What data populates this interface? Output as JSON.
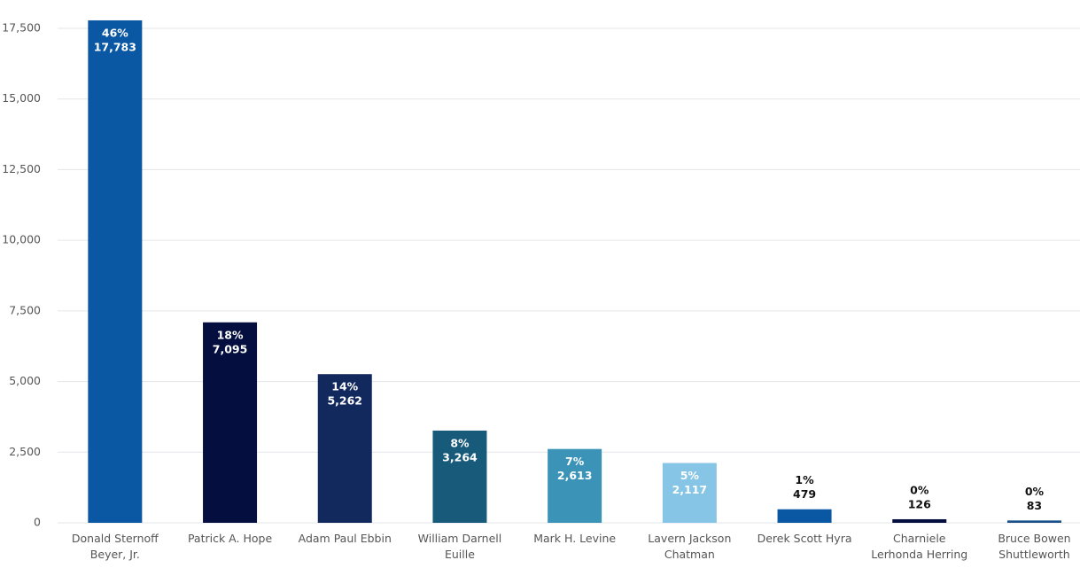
{
  "chart_data": {
    "type": "bar",
    "categories": [
      "Donald Sternoff Beyer, Jr.",
      "Patrick A. Hope",
      "Adam Paul Ebbin",
      "William Darnell Euille",
      "Mark H. Levine",
      "Lavern Jackson Chatman",
      "Derek Scott Hyra",
      "Charniele Lerhonda Herring",
      "Bruce Bowen Shuttleworth"
    ],
    "values": [
      17783,
      7095,
      5262,
      3264,
      2613,
      2117,
      479,
      126,
      83
    ],
    "value_labels": [
      "17,783",
      "7,095",
      "5,262",
      "3,264",
      "2,613",
      "2,117",
      "479",
      "126",
      "83"
    ],
    "percent_labels": [
      "46%",
      "18%",
      "14%",
      "8%",
      "7%",
      "5%",
      "1%",
      "0%",
      "0%"
    ],
    "colors": [
      "#0a57a4",
      "#040f3f",
      "#12295e",
      "#185a7a",
      "#3b93b8",
      "#86c5e5",
      "#0a57a4",
      "#040f3f",
      "#1a4f8a"
    ],
    "ylim": [
      0,
      17500
    ],
    "yticks": [
      0,
      {
        "value": 2500,
        "label": "2,500"
      },
      {
        "value": 5000,
        "label": "5,000"
      },
      {
        "value": 7500,
        "label": "7,500"
      },
      {
        "value": 10000,
        "label": "10,000"
      },
      {
        "value": 12500,
        "label": "12,500"
      },
      {
        "value": 15000,
        "label": "15,000"
      },
      {
        "value": 17500,
        "label": "17,500"
      }
    ],
    "grid": true
  }
}
